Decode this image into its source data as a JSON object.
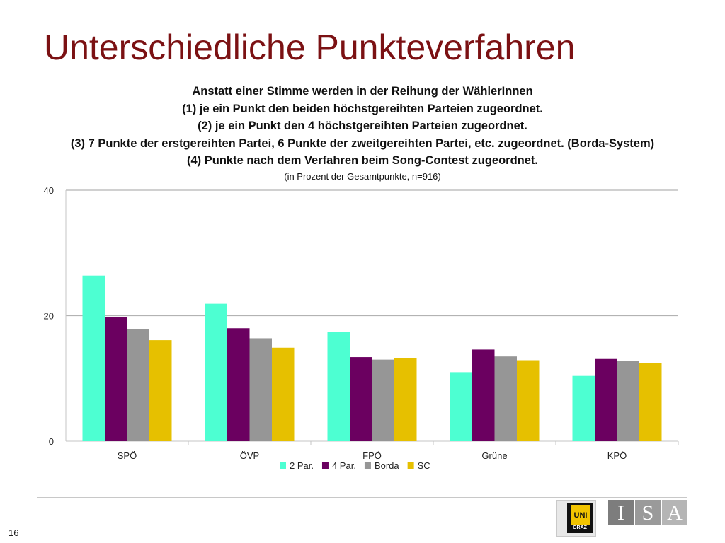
{
  "slide": {
    "title": "Unterschiedliche Punkteverfahren",
    "page_number": "16"
  },
  "heading_lines": [
    "Anstatt einer Stimme werden in der Reihung der WählerInnen",
    "(1)    je ein Punkt den beiden höchstgereihten Parteien zugeordnet.",
    "(2)    je ein Punkt den 4 höchstgereihten Parteien zugeordnet.",
    "(3)    7 Punkte der erstgereihten Partei, 6 Punkte der zweitgereihten Partei, etc. zugeordnet. (Borda-System)",
    "(4)    Punkte nach dem Verfahren beim Song-Contest zugeordnet."
  ],
  "subheading": "(in Prozent der Gesamtpunkte, n=916)",
  "chart_data": {
    "type": "bar",
    "categories": [
      "SPÖ",
      "ÖVP",
      "FPÖ",
      "Grüne",
      "KPÖ"
    ],
    "series": [
      {
        "name": "2 Par.",
        "color": "#4dffd2",
        "values": [
          26.4,
          21.9,
          17.4,
          11.0,
          10.4
        ]
      },
      {
        "name": "4 Par.",
        "color": "#6b0060",
        "values": [
          19.8,
          18.0,
          13.4,
          14.6,
          13.1
        ]
      },
      {
        "name": "Borda",
        "color": "#969696",
        "values": [
          17.9,
          16.4,
          13.0,
          13.5,
          12.8
        ]
      },
      {
        "name": "SC",
        "color": "#e6c000",
        "values": [
          16.1,
          14.9,
          13.2,
          12.9,
          12.5
        ]
      }
    ],
    "ylim": [
      0,
      40
    ],
    "yticks": [
      0,
      20,
      40
    ],
    "grid": true,
    "legend_position": "bottom"
  },
  "logos": {
    "uni_text": "UNI",
    "graz_text": "GRAZ",
    "isa_letters": [
      "I",
      "S",
      "A"
    ],
    "isa_colors": [
      "#7d7d7d",
      "#9a9a9a",
      "#b5b5b5"
    ]
  }
}
